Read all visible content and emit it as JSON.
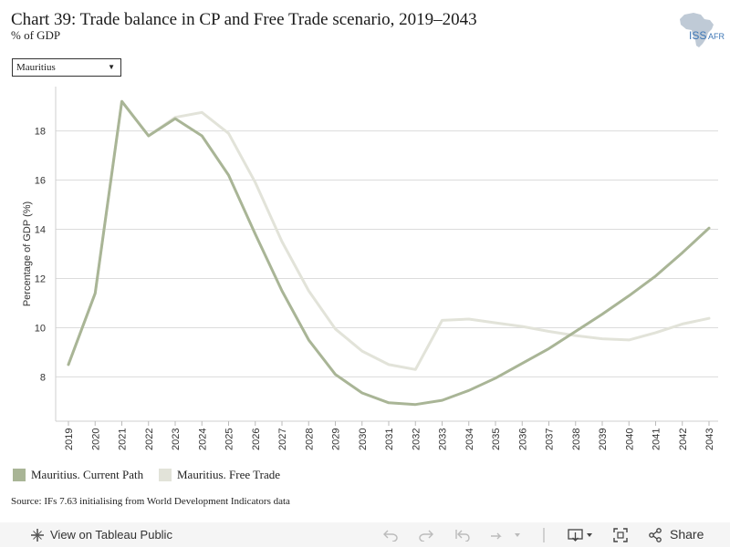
{
  "header": {
    "title": "Chart 39: Trade balance in CP and Free Trade scenario, 2019–2043",
    "subtitle": "% of GDP",
    "logo_text": "ISS",
    "logo_text_suffix": "AFR"
  },
  "filter": {
    "selected": "Mauritius"
  },
  "chart_data": {
    "type": "line",
    "title": "",
    "xlabel": "",
    "ylabel": "Percentage of GDP (%)",
    "ylim": [
      6.2,
      19.8
    ],
    "yticks": [
      8,
      10,
      12,
      14,
      16,
      18
    ],
    "grid": true,
    "legend_position": "bottom-left",
    "x": [
      2019,
      2020,
      2021,
      2022,
      2023,
      2024,
      2025,
      2026,
      2027,
      2028,
      2029,
      2030,
      2031,
      2032,
      2033,
      2034,
      2035,
      2036,
      2037,
      2038,
      2039,
      2040,
      2041,
      2042,
      2043
    ],
    "series": [
      {
        "name": "Mauritius. Current Path",
        "color": "#a9b596",
        "values": [
          8.5,
          11.4,
          19.2,
          17.8,
          18.5,
          17.8,
          16.2,
          13.8,
          11.5,
          9.5,
          8.1,
          7.35,
          6.95,
          6.88,
          7.05,
          7.45,
          7.95,
          8.55,
          9.15,
          9.85,
          10.55,
          11.3,
          12.1,
          13.05,
          14.05
        ]
      },
      {
        "name": "Mauritius. Free Trade",
        "color": "#e2e3d9",
        "values": [
          8.5,
          11.4,
          19.2,
          17.8,
          18.55,
          18.75,
          17.9,
          15.9,
          13.5,
          11.5,
          9.95,
          9.05,
          8.5,
          8.3,
          10.3,
          10.35,
          10.2,
          10.05,
          9.85,
          9.68,
          9.55,
          9.5,
          9.8,
          10.15,
          10.38
        ]
      }
    ]
  },
  "legend": {
    "items": [
      {
        "label": "Mauritius. Current Path",
        "color": "#a9b596"
      },
      {
        "label": "Mauritius. Free Trade",
        "color": "#e2e3d9"
      }
    ]
  },
  "source": "Source: IFs 7.63 initialising from World Development Indicators data",
  "toolbar": {
    "view_label": "View on Tableau Public",
    "share_label": "Share",
    "icons": [
      "tableau-logo-icon",
      "undo-icon",
      "redo-icon",
      "revert-icon",
      "refresh-icon",
      "download-icon",
      "fullscreen-icon",
      "share-icon"
    ]
  }
}
